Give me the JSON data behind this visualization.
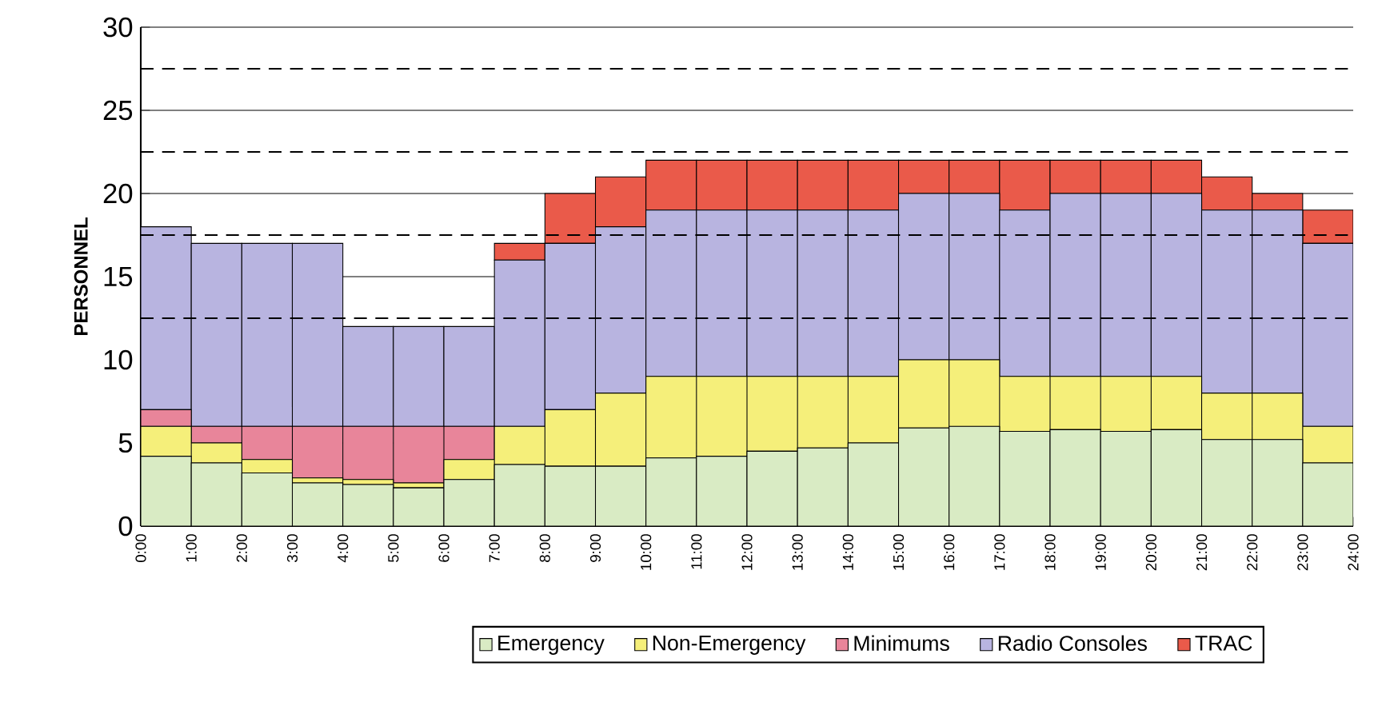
{
  "chart_data": {
    "type": "bar",
    "stacked": true,
    "ylabel": "PERSONNEL",
    "x": [
      0.5,
      1.5,
      2.5,
      3.5,
      4.5,
      5.5,
      6.5,
      7.5,
      8.5,
      9.5,
      10.5,
      11.5,
      12.5,
      13.5,
      14.5,
      15.5,
      16.5,
      17.5,
      18.5,
      19.5,
      20.5,
      21.5,
      22.5,
      23.5
    ],
    "xlim": [
      0,
      24
    ],
    "xticks": [
      {
        "value": 0,
        "label": "0:00"
      },
      {
        "value": 1,
        "label": "1:00"
      },
      {
        "value": 2,
        "label": "2:00"
      },
      {
        "value": 3,
        "label": "3:00"
      },
      {
        "value": 4,
        "label": "4:00"
      },
      {
        "value": 5,
        "label": "5:00"
      },
      {
        "value": 6,
        "label": "6:00"
      },
      {
        "value": 7,
        "label": "7:00"
      },
      {
        "value": 8,
        "label": "8:00"
      },
      {
        "value": 9,
        "label": "9:00"
      },
      {
        "value": 10,
        "label": "10:00"
      },
      {
        "value": 11,
        "label": "11:00"
      },
      {
        "value": 12,
        "label": "12:00"
      },
      {
        "value": 13,
        "label": "13:00"
      },
      {
        "value": 14,
        "label": "14:00"
      },
      {
        "value": 15,
        "label": "15:00"
      },
      {
        "value": 16,
        "label": "16:00"
      },
      {
        "value": 17,
        "label": "17:00"
      },
      {
        "value": 18,
        "label": "18:00"
      },
      {
        "value": 19,
        "label": "19:00"
      },
      {
        "value": 20,
        "label": "20:00"
      },
      {
        "value": 21,
        "label": "21:00"
      },
      {
        "value": 22,
        "label": "22:00"
      },
      {
        "value": 23,
        "label": "23:00"
      },
      {
        "value": 24,
        "label": "24:00"
      }
    ],
    "ylim": [
      0,
      30
    ],
    "yticks": [
      0,
      5,
      10,
      15,
      20,
      25,
      30
    ],
    "grid": "y",
    "legend": "bottom",
    "ref_lines": [
      {
        "axis": "y",
        "value": 12.5,
        "line_style": "dashed"
      },
      {
        "axis": "y",
        "value": 17.5,
        "line_style": "dashed"
      },
      {
        "axis": "y",
        "value": 22.5,
        "line_style": "dashed"
      },
      {
        "axis": "y",
        "value": 27.5,
        "line_style": "dashed"
      }
    ],
    "series": [
      {
        "name": "Emergency",
        "color": "#d9ebc4",
        "values": [
          4.2,
          3.8,
          3.2,
          2.6,
          2.5,
          2.3,
          2.8,
          3.7,
          3.6,
          3.6,
          4.1,
          4.2,
          4.5,
          4.7,
          5.0,
          5.9,
          6.0,
          5.7,
          5.8,
          5.7,
          5.8,
          5.2,
          5.2,
          3.8
        ]
      },
      {
        "name": "Non-Emergency",
        "color": "#f5ef7a",
        "values": [
          1.8,
          1.2,
          0.8,
          0.3,
          0.3,
          0.3,
          1.2,
          2.3,
          3.4,
          4.4,
          4.9,
          4.8,
          4.5,
          4.3,
          4.0,
          4.1,
          4.0,
          3.3,
          3.2,
          3.3,
          3.2,
          2.8,
          2.8,
          2.2
        ]
      },
      {
        "name": "Minimums",
        "color": "#e8859a",
        "values": [
          1,
          1,
          2,
          3.1,
          3.2,
          3.4,
          2.0,
          0,
          0,
          0,
          0,
          0,
          0,
          0,
          0,
          0,
          0,
          0,
          0,
          0,
          0,
          0,
          0,
          0
        ]
      },
      {
        "name": "Radio Consoles",
        "color": "#b8b4e0",
        "values": [
          11,
          11,
          11,
          11,
          6,
          6,
          6,
          10,
          10,
          10,
          10,
          10,
          10,
          10,
          10,
          10,
          10,
          10,
          11,
          11,
          11,
          11,
          11,
          11
        ]
      },
      {
        "name": "TRAC",
        "color": "#ea5a4a",
        "values": [
          0,
          0,
          0,
          0,
          0,
          0,
          0,
          1,
          3,
          3,
          3,
          3,
          3,
          3,
          3,
          2,
          2,
          3,
          2,
          2,
          2,
          2,
          1,
          2
        ]
      }
    ]
  }
}
